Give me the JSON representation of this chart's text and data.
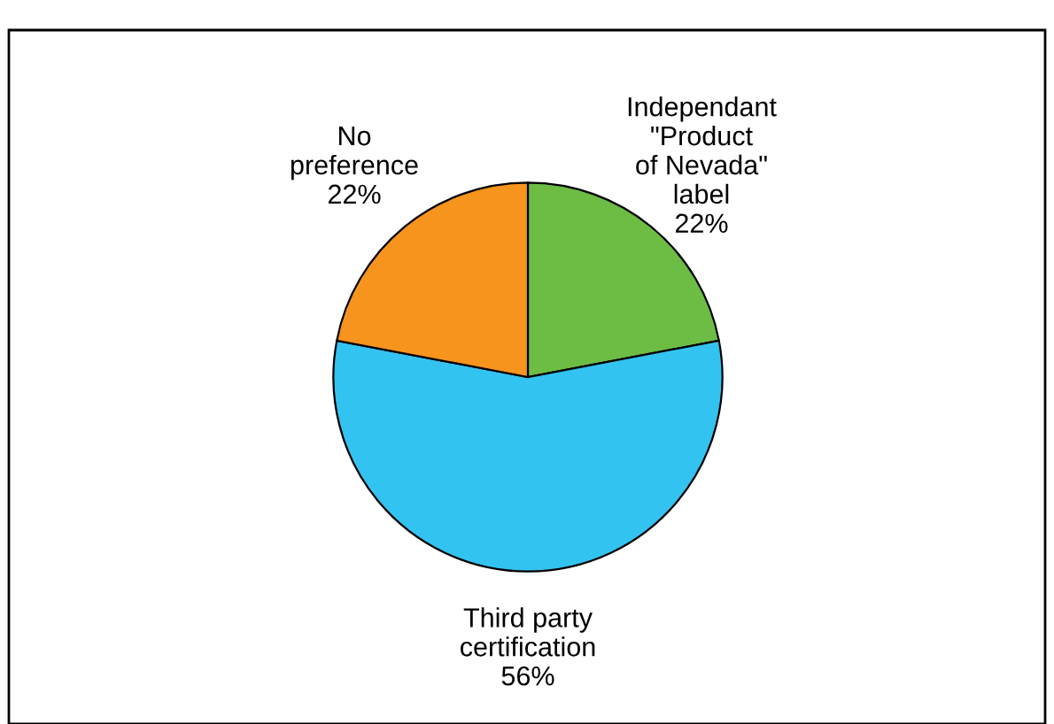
{
  "chart_data": {
    "type": "pie",
    "categories": [
      "Independant\n\"Product\nof Nevada\"\nlabel",
      "Third party\ncertification",
      "No\npreference"
    ],
    "values": [
      22,
      56,
      22
    ],
    "value_labels": [
      "22%",
      "56%",
      "22%"
    ],
    "colors": [
      "#6dbd45",
      "#33c3f0",
      "#f7941d"
    ]
  }
}
